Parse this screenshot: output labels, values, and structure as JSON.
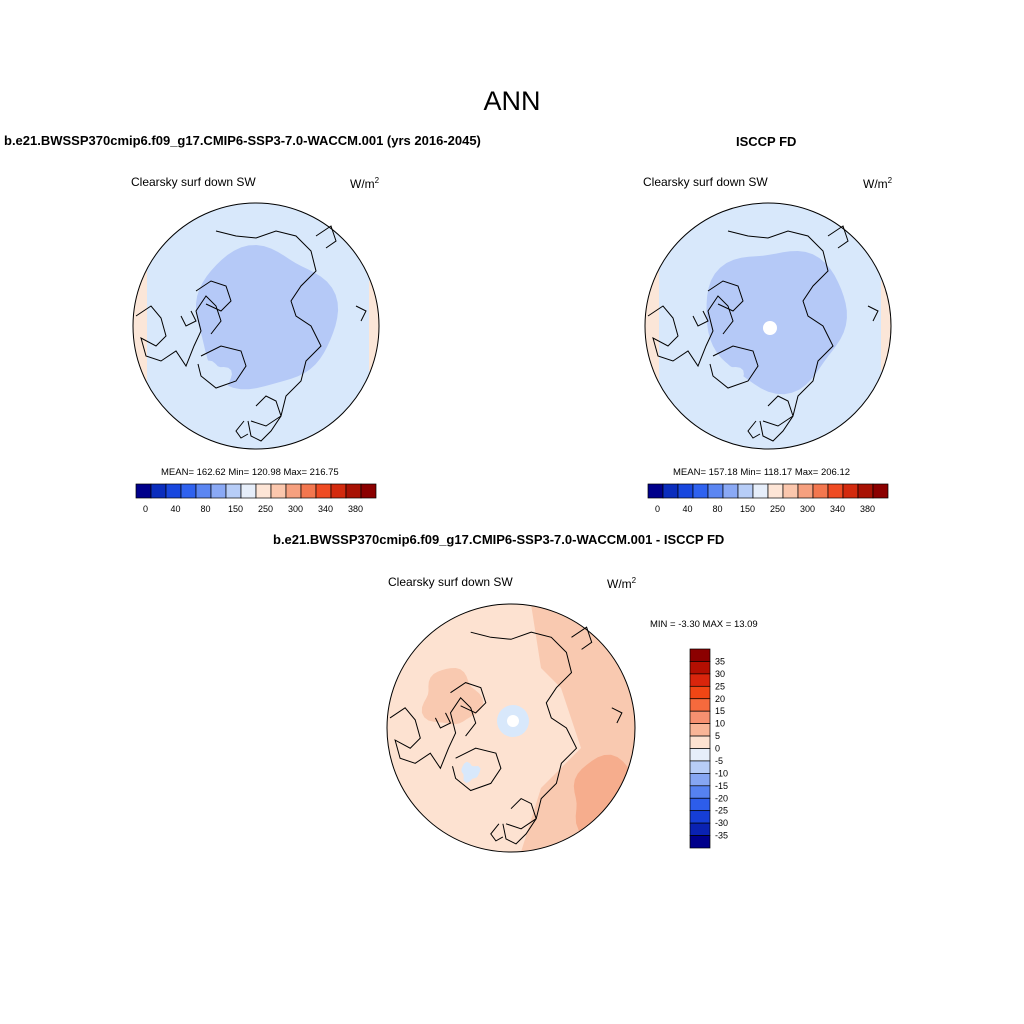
{
  "title": "ANN",
  "panels": [
    {
      "title": "b.e21.BWSSP370cmip6.f09_g17.CMIP6-SSP3-7.0-WACCM.001 (yrs 2016-2045)",
      "variable": "Clearsky surf down SW",
      "units": "W/m",
      "units_sup": "2",
      "stats": "MEAN= 162.62  Min= 120.98  Max= 216.75"
    },
    {
      "title": "ISCCP FD",
      "variable": "Clearsky surf down SW",
      "units": "W/m",
      "units_sup": "2",
      "stats": "MEAN= 157.18  Min= 118.17  Max= 206.12"
    },
    {
      "title": "b.e21.BWSSP370cmip6.f09_g17.CMIP6-SSP3-7.0-WACCM.001 - ISCCP FD",
      "variable": "Clearsky surf down SW",
      "units": "W/m",
      "units_sup": "2",
      "stats": "MIN =  -3.30 MAX =  13.09"
    }
  ],
  "colorbars": {
    "horizontal_labels": [
      "0",
      "40",
      "80",
      "150",
      "250",
      "300",
      "340",
      "380"
    ],
    "horizontal_colors": [
      "#00008b",
      "#0a2dbd",
      "#1847de",
      "#2f62ef",
      "#5b86f2",
      "#8aa9f5",
      "#b7cdf7",
      "#e6eefa",
      "#fde5d6",
      "#fbc7ad",
      "#f6a07f",
      "#f3774f",
      "#ef4b23",
      "#d32a0e",
      "#a81204",
      "#8b0000"
    ],
    "vertical_labels": [
      "35",
      "30",
      "25",
      "20",
      "15",
      "10",
      "5",
      "0",
      "-5",
      "-10",
      "-15",
      "-20",
      "-25",
      "-30",
      "-35"
    ],
    "vertical_colors": [
      "#8b0000",
      "#b40f02",
      "#d9250c",
      "#f14615",
      "#f56a3d",
      "#f79070",
      "#f9b597",
      "#fde2d1",
      "#e6eefa",
      "#b7cdf7",
      "#86a6f3",
      "#5682f1",
      "#2d5deb",
      "#163ed6",
      "#0a22b2",
      "#00008b"
    ]
  },
  "maps": {
    "fill_outer": "#d8e8fb",
    "fill_inner": "#b5c9f7",
    "fill_rim": "#fbe6d8",
    "diff_base": "#fde2d1",
    "diff_mid": "#f9c9b0",
    "diff_high": "#f6ad8d",
    "diff_neg": "#d8e8fb"
  }
}
